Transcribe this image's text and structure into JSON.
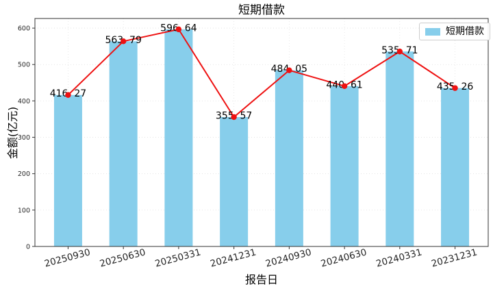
{
  "title": "短期借款",
  "legend": {
    "label": "短期借款",
    "swatch_color": "#87CEEB"
  },
  "chart_data": {
    "type": "bar",
    "overlay": "line",
    "title": "短期借款",
    "xlabel": "报告日",
    "ylabel": "金额(亿元)",
    "categories": [
      "20250930",
      "20250630",
      "20250331",
      "20241231",
      "20240930",
      "20240630",
      "20240331",
      "20231231"
    ],
    "values": [
      416.27,
      563.79,
      596.64,
      355.57,
      484.05,
      440.61,
      535.71,
      435.26
    ],
    "point_labels": [
      "416. 27",
      "563. 79",
      "596. 64",
      "355. 57",
      "484. 05",
      "440. 61",
      "535. 71",
      "435. 26"
    ],
    "series_name": "短期借款",
    "yticks": [
      0,
      100,
      200,
      300,
      400,
      500,
      600
    ],
    "ylim": [
      0,
      626.5
    ],
    "grid": "dotted",
    "legend_position": "upper right",
    "xtick_rotation": 15,
    "bar_color": "#87CEEB",
    "line_color": "#EE1111",
    "label_color": "#000000"
  },
  "colors": {
    "background": "#FFFFFF",
    "spine": "#333333",
    "grid": "#DCDCDC",
    "tick": "#333333",
    "tick_label": "#262626"
  }
}
